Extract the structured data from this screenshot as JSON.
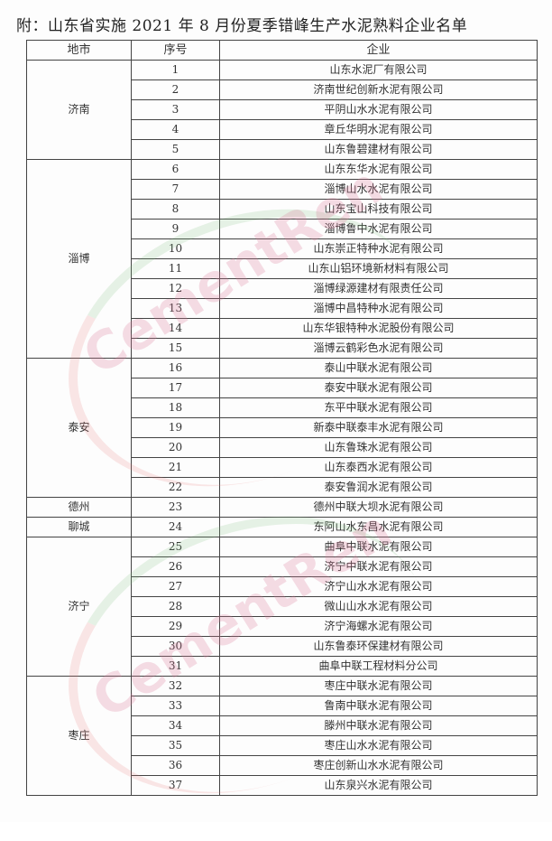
{
  "title": "附：山东省实施 2021 年 8 月份夏季错峰生产水泥熟料企业名单",
  "headers": {
    "city": "地市",
    "no": "序号",
    "company": "企业"
  },
  "watermark": "CementRen",
  "groups": [
    {
      "city": "济南",
      "rows": [
        [
          "1",
          "山东水泥厂有限公司"
        ],
        [
          "2",
          "济南世纪创新水泥有限公司"
        ],
        [
          "3",
          "平阴山水水泥有限公司"
        ],
        [
          "4",
          "章丘华明水泥有限公司"
        ],
        [
          "5",
          "山东鲁碧建材有限公司"
        ]
      ]
    },
    {
      "city": "淄博",
      "rows": [
        [
          "6",
          "山东东华水泥有限公司"
        ],
        [
          "7",
          "淄博山水水泥有限公司"
        ],
        [
          "8",
          "山东宝山科技有限公司"
        ],
        [
          "9",
          "淄博鲁中水泥有限公司"
        ],
        [
          "10",
          "山东崇正特种水泥有限公司"
        ],
        [
          "11",
          "山东山铝环境新材料有限公司"
        ],
        [
          "12",
          "淄博绿源建材有限责任公司"
        ],
        [
          "13",
          "淄博中昌特种水泥有限公司"
        ],
        [
          "14",
          "山东华银特种水泥股份有限公司"
        ],
        [
          "15",
          "淄博云鹤彩色水泥有限公司"
        ]
      ]
    },
    {
      "city": "泰安",
      "rows": [
        [
          "16",
          "泰山中联水泥有限公司"
        ],
        [
          "17",
          "泰安中联水泥有限公司"
        ],
        [
          "18",
          "东平中联水泥有限公司"
        ],
        [
          "19",
          "新泰中联泰丰水泥有限公司"
        ],
        [
          "20",
          "山东鲁珠水泥有限公司"
        ],
        [
          "21",
          "山东泰西水泥有限公司"
        ],
        [
          "22",
          "泰安鲁润水泥有限公司"
        ]
      ]
    },
    {
      "city": "德州",
      "rows": [
        [
          "23",
          "德州中联大坝水泥有限公司"
        ]
      ]
    },
    {
      "city": "聊城",
      "rows": [
        [
          "24",
          "东阿山水东昌水泥有限公司"
        ]
      ]
    },
    {
      "city": "济宁",
      "rows": [
        [
          "25",
          "曲阜中联水泥有限公司"
        ],
        [
          "26",
          "济宁中联水泥有限公司"
        ],
        [
          "27",
          "济宁山水水泥有限公司"
        ],
        [
          "28",
          "微山山水水泥有限公司"
        ],
        [
          "29",
          "济宁海螺水泥有限公司"
        ],
        [
          "30",
          "山东鲁泰环保建材有限公司"
        ],
        [
          "31",
          "曲阜中联工程材料分公司"
        ]
      ]
    },
    {
      "city": "枣庄",
      "rows": [
        [
          "32",
          "枣庄中联水泥有限公司"
        ],
        [
          "33",
          "鲁南中联水泥有限公司"
        ],
        [
          "34",
          "滕州中联水泥有限公司"
        ],
        [
          "35",
          "枣庄山水水泥有限公司"
        ],
        [
          "36",
          "枣庄创新山水水泥有限公司"
        ],
        [
          "37",
          "山东泉兴水泥有限公司"
        ]
      ]
    }
  ]
}
